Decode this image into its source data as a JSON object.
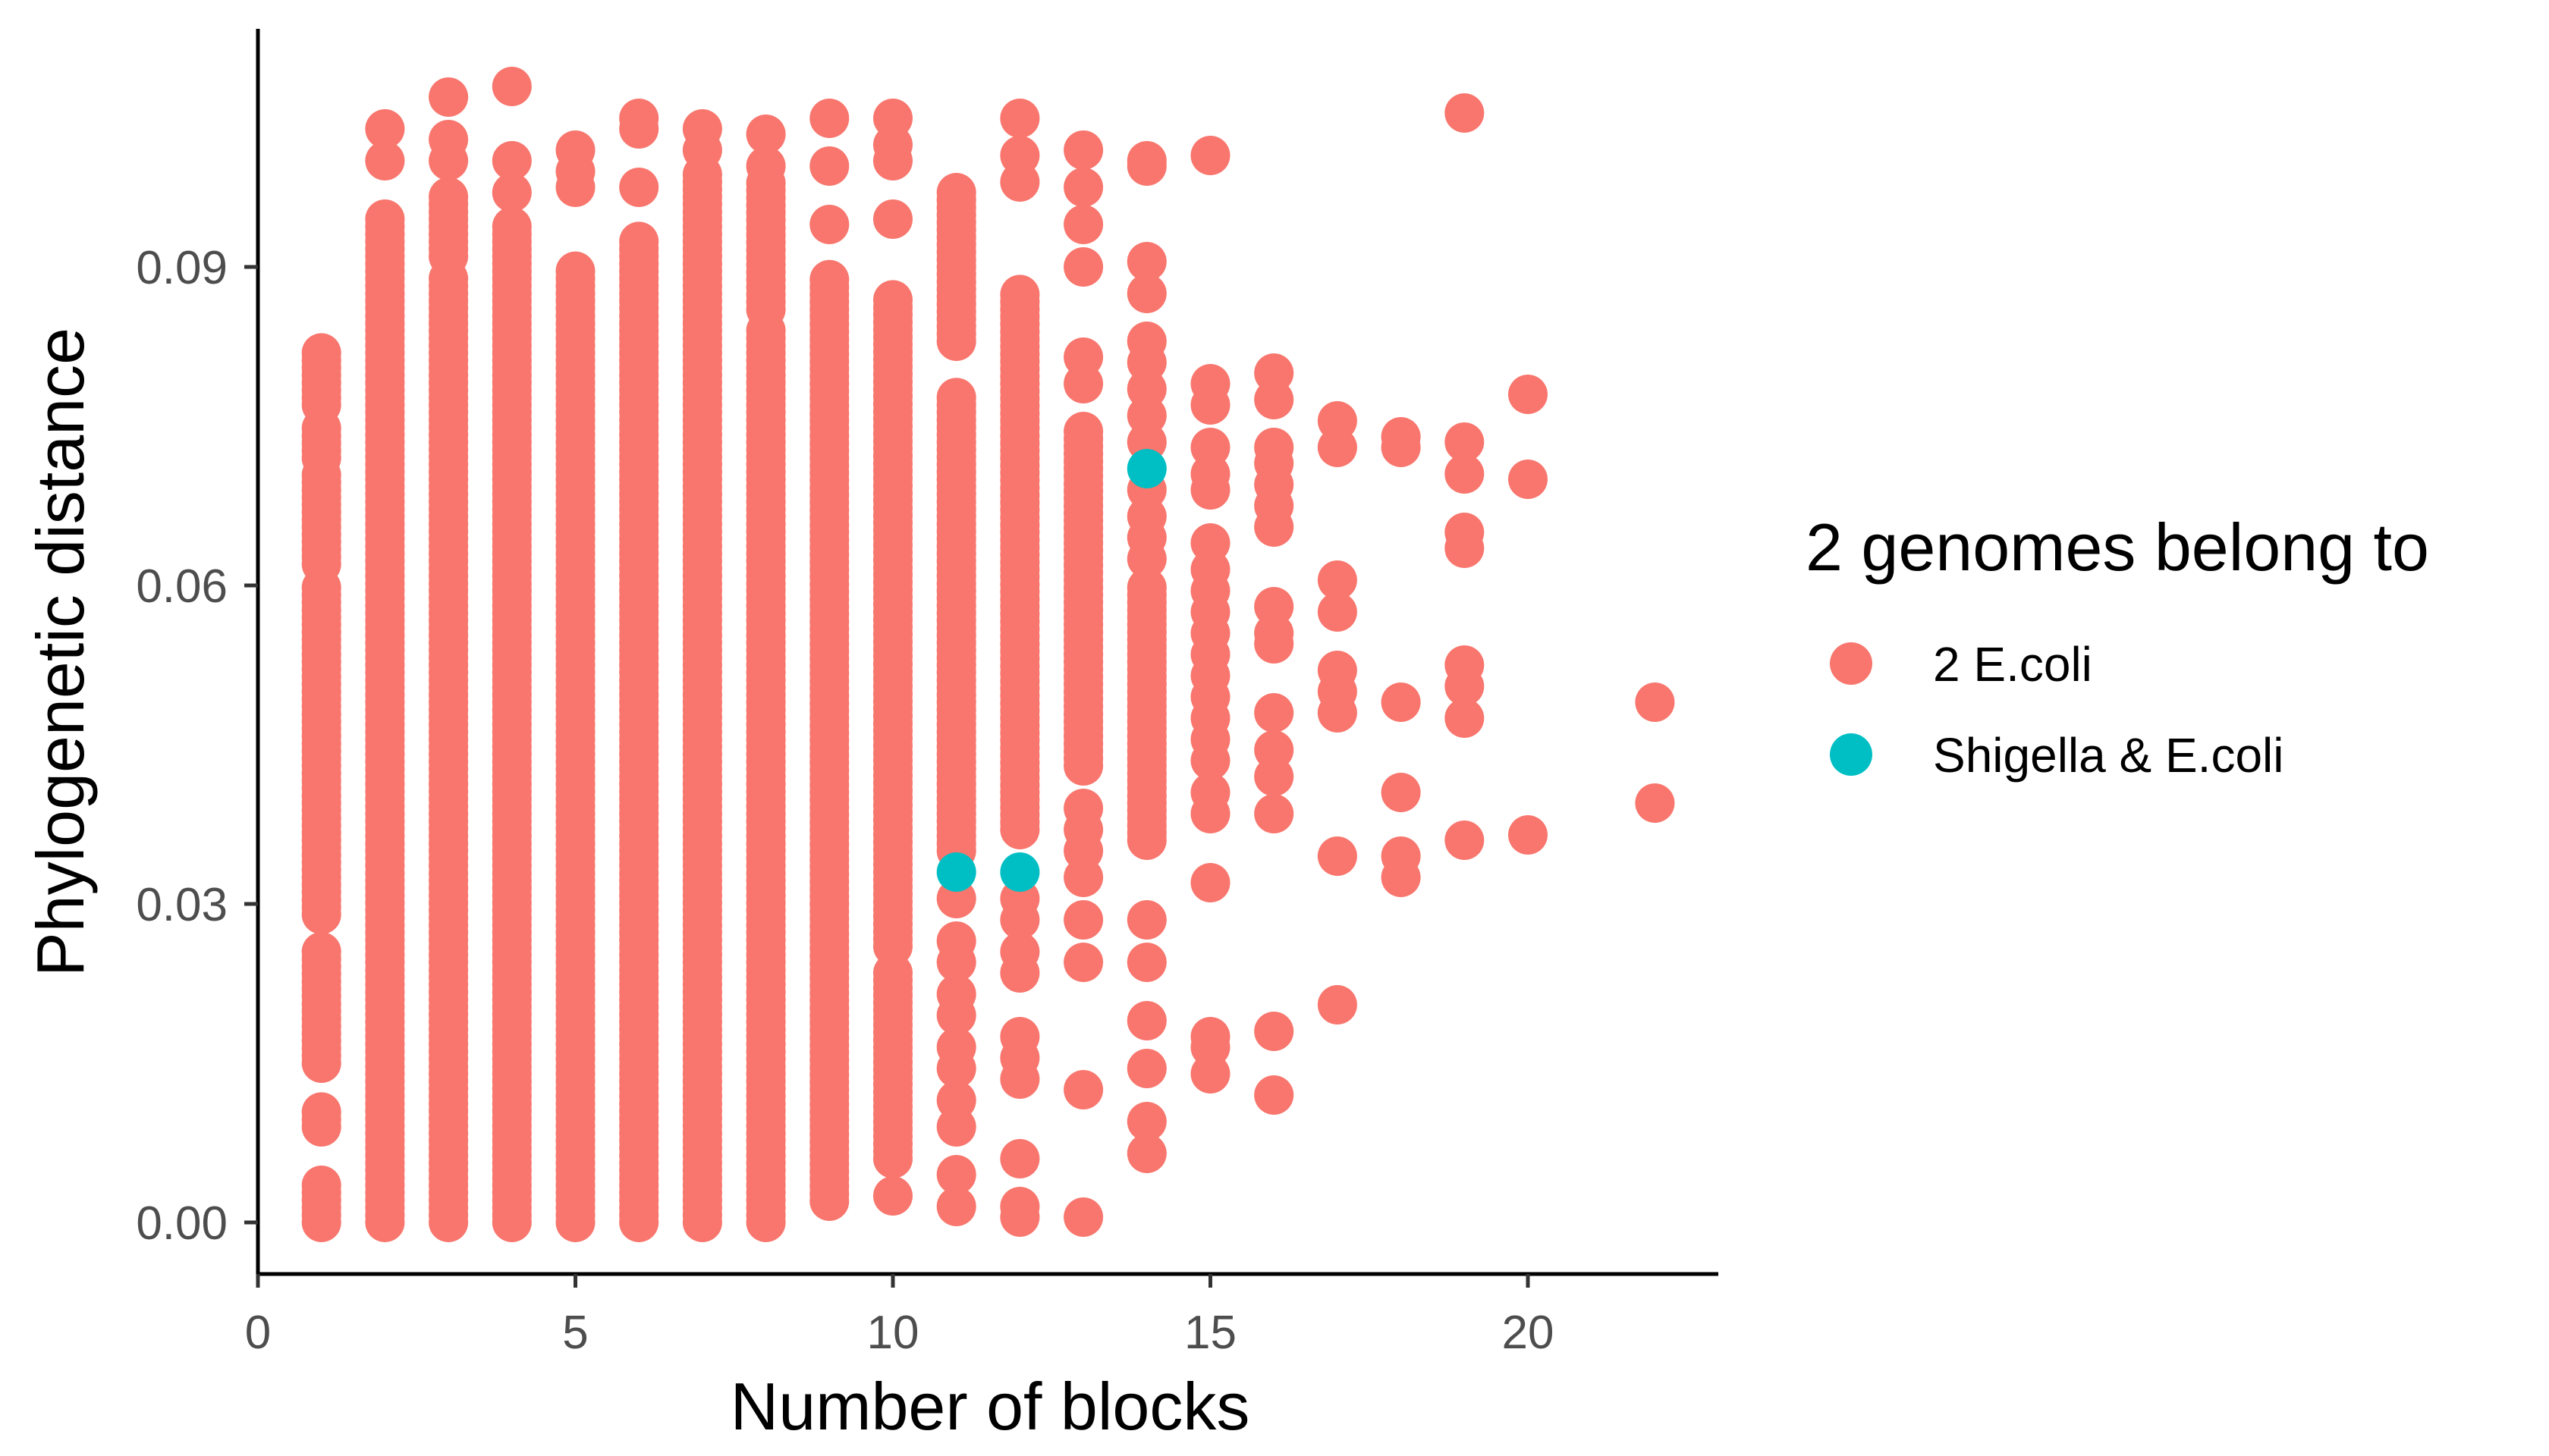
{
  "chart_data": {
    "type": "scatter",
    "title": "",
    "xlabel": "Number of blocks",
    "ylabel": "Phylogenetic distance",
    "xlim": [
      0,
      23
    ],
    "ylim": [
      -0.005,
      0.11
    ],
    "x_ticks": [
      "0",
      "5",
      "10",
      "15",
      "20"
    ],
    "x_tick_values": [
      0,
      5,
      10,
      15,
      20
    ],
    "y_ticks": [
      "0.00",
      "0.03",
      "0.06",
      "0.09"
    ],
    "y_tick_values": [
      0.0,
      0.03,
      0.06,
      0.09
    ],
    "grid": false,
    "legend": {
      "title": "2 genomes belong to",
      "position": "right"
    },
    "series": [
      {
        "name": "2 E.coli",
        "color": "#F8766D",
        "ranges": [
          {
            "x": 1,
            "from": 0.0,
            "to": 0.0035
          },
          {
            "x": 1,
            "from": 0.009,
            "to": 0.011
          },
          {
            "x": 1,
            "from": 0.015,
            "to": 0.026
          },
          {
            "x": 1,
            "from": 0.029,
            "to": 0.06
          },
          {
            "x": 1,
            "from": 0.062,
            "to": 0.071
          },
          {
            "x": 1,
            "from": 0.072,
            "to": 0.075
          },
          {
            "x": 1,
            "from": 0.077,
            "to": 0.082
          },
          {
            "x": 2,
            "from": 0.0,
            "to": 0.095
          },
          {
            "x": 3,
            "from": 0.0,
            "to": 0.089
          },
          {
            "x": 3,
            "from": 0.091,
            "to": 0.097
          },
          {
            "x": 4,
            "from": 0.0,
            "to": 0.094
          },
          {
            "x": 5,
            "from": 0.0,
            "to": 0.09
          },
          {
            "x": 6,
            "from": 0.0,
            "to": 0.093
          },
          {
            "x": 7,
            "from": 0.0,
            "to": 0.099
          },
          {
            "x": 8,
            "from": 0.0,
            "to": 0.084
          },
          {
            "x": 8,
            "from": 0.086,
            "to": 0.098
          },
          {
            "x": 9,
            "from": 0.002,
            "to": 0.089
          },
          {
            "x": 10,
            "from": 0.006,
            "to": 0.024
          },
          {
            "x": 10,
            "from": 0.026,
            "to": 0.087
          },
          {
            "x": 11,
            "from": 0.035,
            "to": 0.078
          },
          {
            "x": 11,
            "from": 0.083,
            "to": 0.097
          },
          {
            "x": 12,
            "from": 0.037,
            "to": 0.088
          },
          {
            "x": 13,
            "from": 0.043,
            "to": 0.075
          },
          {
            "x": 14,
            "from": 0.036,
            "to": 0.06
          }
        ],
        "points": [
          {
            "x": 2,
            "y": 0.1
          },
          {
            "x": 2,
            "y": 0.103
          },
          {
            "x": 3,
            "y": 0.1
          },
          {
            "x": 3,
            "y": 0.102
          },
          {
            "x": 3,
            "y": 0.106
          },
          {
            "x": 4,
            "y": 0.097
          },
          {
            "x": 4,
            "y": 0.1
          },
          {
            "x": 4,
            "y": 0.107
          },
          {
            "x": 5,
            "y": 0.0975
          },
          {
            "x": 5,
            "y": 0.099
          },
          {
            "x": 5,
            "y": 0.101
          },
          {
            "x": 6,
            "y": 0.0975
          },
          {
            "x": 6,
            "y": 0.103
          },
          {
            "x": 6,
            "y": 0.104
          },
          {
            "x": 7,
            "y": 0.101
          },
          {
            "x": 7,
            "y": 0.103
          },
          {
            "x": 8,
            "y": 0.0995
          },
          {
            "x": 8,
            "y": 0.1025
          },
          {
            "x": 9,
            "y": 0.094
          },
          {
            "x": 9,
            "y": 0.0995
          },
          {
            "x": 9,
            "y": 0.104
          },
          {
            "x": 10,
            "y": 0.0025
          },
          {
            "x": 10,
            "y": 0.0945
          },
          {
            "x": 10,
            "y": 0.1
          },
          {
            "x": 10,
            "y": 0.1015
          },
          {
            "x": 10,
            "y": 0.104
          },
          {
            "x": 11,
            "y": 0.0015
          },
          {
            "x": 11,
            "y": 0.0045
          },
          {
            "x": 11,
            "y": 0.009
          },
          {
            "x": 11,
            "y": 0.0115
          },
          {
            "x": 11,
            "y": 0.0145
          },
          {
            "x": 11,
            "y": 0.0165
          },
          {
            "x": 11,
            "y": 0.0195
          },
          {
            "x": 11,
            "y": 0.0215
          },
          {
            "x": 11,
            "y": 0.0245
          },
          {
            "x": 11,
            "y": 0.0265
          },
          {
            "x": 11,
            "y": 0.0305
          },
          {
            "x": 12,
            "y": 0.0005
          },
          {
            "x": 12,
            "y": 0.0015
          },
          {
            "x": 12,
            "y": 0.006
          },
          {
            "x": 12,
            "y": 0.0135
          },
          {
            "x": 12,
            "y": 0.0155
          },
          {
            "x": 12,
            "y": 0.0175
          },
          {
            "x": 12,
            "y": 0.0235
          },
          {
            "x": 12,
            "y": 0.0255
          },
          {
            "x": 12,
            "y": 0.0285
          },
          {
            "x": 12,
            "y": 0.0305
          },
          {
            "x": 12,
            "y": 0.098
          },
          {
            "x": 12,
            "y": 0.1005
          },
          {
            "x": 12,
            "y": 0.104
          },
          {
            "x": 13,
            "y": 0.0005
          },
          {
            "x": 13,
            "y": 0.0125
          },
          {
            "x": 13,
            "y": 0.0245
          },
          {
            "x": 13,
            "y": 0.0285
          },
          {
            "x": 13,
            "y": 0.0325
          },
          {
            "x": 13,
            "y": 0.035
          },
          {
            "x": 13,
            "y": 0.037
          },
          {
            "x": 13,
            "y": 0.039
          },
          {
            "x": 13,
            "y": 0.079
          },
          {
            "x": 13,
            "y": 0.0815
          },
          {
            "x": 13,
            "y": 0.09
          },
          {
            "x": 13,
            "y": 0.094
          },
          {
            "x": 13,
            "y": 0.0975
          },
          {
            "x": 13,
            "y": 0.101
          },
          {
            "x": 14,
            "y": 0.0065
          },
          {
            "x": 14,
            "y": 0.0095
          },
          {
            "x": 14,
            "y": 0.0145
          },
          {
            "x": 14,
            "y": 0.019
          },
          {
            "x": 14,
            "y": 0.0245
          },
          {
            "x": 14,
            "y": 0.0285
          },
          {
            "x": 14,
            "y": 0.0625
          },
          {
            "x": 14,
            "y": 0.0645
          },
          {
            "x": 14,
            "y": 0.0665
          },
          {
            "x": 14,
            "y": 0.069
          },
          {
            "x": 14,
            "y": 0.0735
          },
          {
            "x": 14,
            "y": 0.076
          },
          {
            "x": 14,
            "y": 0.0785
          },
          {
            "x": 14,
            "y": 0.081
          },
          {
            "x": 14,
            "y": 0.083
          },
          {
            "x": 14,
            "y": 0.0875
          },
          {
            "x": 14,
            "y": 0.0905
          },
          {
            "x": 14,
            "y": 0.0995
          },
          {
            "x": 14,
            "y": 0.1
          },
          {
            "x": 15,
            "y": 0.014
          },
          {
            "x": 15,
            "y": 0.0165
          },
          {
            "x": 15,
            "y": 0.0175
          },
          {
            "x": 15,
            "y": 0.032
          },
          {
            "x": 15,
            "y": 0.0385
          },
          {
            "x": 15,
            "y": 0.0405
          },
          {
            "x": 15,
            "y": 0.0435
          },
          {
            "x": 15,
            "y": 0.0455
          },
          {
            "x": 15,
            "y": 0.0475
          },
          {
            "x": 15,
            "y": 0.0495
          },
          {
            "x": 15,
            "y": 0.0515
          },
          {
            "x": 15,
            "y": 0.0535
          },
          {
            "x": 15,
            "y": 0.0555
          },
          {
            "x": 15,
            "y": 0.0575
          },
          {
            "x": 15,
            "y": 0.0595
          },
          {
            "x": 15,
            "y": 0.0615
          },
          {
            "x": 15,
            "y": 0.064
          },
          {
            "x": 15,
            "y": 0.069
          },
          {
            "x": 15,
            "y": 0.0705
          },
          {
            "x": 15,
            "y": 0.073
          },
          {
            "x": 15,
            "y": 0.077
          },
          {
            "x": 15,
            "y": 0.079
          },
          {
            "x": 15,
            "y": 0.1005
          },
          {
            "x": 16,
            "y": 0.012
          },
          {
            "x": 16,
            "y": 0.018
          },
          {
            "x": 16,
            "y": 0.0385
          },
          {
            "x": 16,
            "y": 0.042
          },
          {
            "x": 16,
            "y": 0.0445
          },
          {
            "x": 16,
            "y": 0.048
          },
          {
            "x": 16,
            "y": 0.0545
          },
          {
            "x": 16,
            "y": 0.0555
          },
          {
            "x": 16,
            "y": 0.058
          },
          {
            "x": 16,
            "y": 0.0655
          },
          {
            "x": 16,
            "y": 0.0675
          },
          {
            "x": 16,
            "y": 0.0695
          },
          {
            "x": 16,
            "y": 0.0715
          },
          {
            "x": 16,
            "y": 0.073
          },
          {
            "x": 16,
            "y": 0.0775
          },
          {
            "x": 16,
            "y": 0.08
          },
          {
            "x": 17,
            "y": 0.0205
          },
          {
            "x": 17,
            "y": 0.0345
          },
          {
            "x": 17,
            "y": 0.048
          },
          {
            "x": 17,
            "y": 0.05
          },
          {
            "x": 17,
            "y": 0.052
          },
          {
            "x": 17,
            "y": 0.0575
          },
          {
            "x": 17,
            "y": 0.0605
          },
          {
            "x": 17,
            "y": 0.073
          },
          {
            "x": 17,
            "y": 0.0755
          },
          {
            "x": 18,
            "y": 0.0325
          },
          {
            "x": 18,
            "y": 0.0345
          },
          {
            "x": 18,
            "y": 0.0405
          },
          {
            "x": 18,
            "y": 0.049
          },
          {
            "x": 18,
            "y": 0.073
          },
          {
            "x": 18,
            "y": 0.074
          },
          {
            "x": 19,
            "y": 0.036
          },
          {
            "x": 19,
            "y": 0.0475
          },
          {
            "x": 19,
            "y": 0.0505
          },
          {
            "x": 19,
            "y": 0.0525
          },
          {
            "x": 19,
            "y": 0.0635
          },
          {
            "x": 19,
            "y": 0.065
          },
          {
            "x": 19,
            "y": 0.0705
          },
          {
            "x": 19,
            "y": 0.0735
          },
          {
            "x": 19,
            "y": 0.1045
          },
          {
            "x": 20,
            "y": 0.0365
          },
          {
            "x": 20,
            "y": 0.07
          },
          {
            "x": 20,
            "y": 0.078
          },
          {
            "x": 22,
            "y": 0.0395
          },
          {
            "x": 22,
            "y": 0.049
          }
        ]
      },
      {
        "name": "Shigella & E.coli",
        "color": "#00BFC4",
        "points": [
          {
            "x": 11,
            "y": 0.033
          },
          {
            "x": 12,
            "y": 0.033
          },
          {
            "x": 14,
            "y": 0.071
          }
        ]
      }
    ]
  }
}
